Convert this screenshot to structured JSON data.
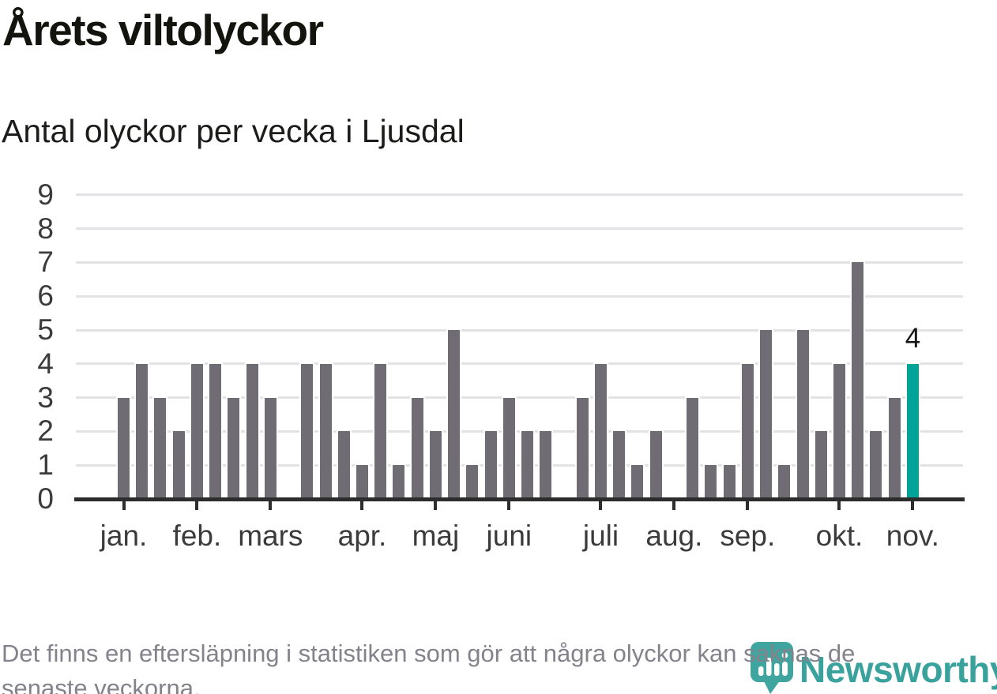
{
  "chart_data": {
    "type": "bar",
    "title": "Årets viltolyckor",
    "subtitle": "Antal olyckor per vecka i Ljusdal",
    "xlabel": "",
    "ylabel": "",
    "x_unit": "vecka",
    "ylim": [
      0,
      9
    ],
    "y_ticks": [
      0,
      1,
      2,
      3,
      4,
      5,
      6,
      7,
      8,
      9
    ],
    "grid": "horizontal",
    "values": [
      3,
      4,
      3,
      2,
      4,
      4,
      3,
      4,
      3,
      0,
      4,
      4,
      2,
      1,
      4,
      1,
      3,
      2,
      5,
      1,
      2,
      3,
      2,
      2,
      0,
      3,
      4,
      2,
      1,
      2,
      0,
      3,
      1,
      1,
      4,
      5,
      1,
      5,
      2,
      4,
      7,
      2,
      3,
      4
    ],
    "highlight_index": 43,
    "annotation": {
      "label": "4"
    },
    "month_ticks": [
      {
        "label": "jan.",
        "week": 1
      },
      {
        "label": "feb.",
        "week": 5
      },
      {
        "label": "mars",
        "week": 9
      },
      {
        "label": "apr.",
        "week": 14
      },
      {
        "label": "maj",
        "week": 18
      },
      {
        "label": "juni",
        "week": 22
      },
      {
        "label": "juli",
        "week": 27
      },
      {
        "label": "aug.",
        "week": 31
      },
      {
        "label": "sep.",
        "week": 35
      },
      {
        "label": "okt.",
        "week": 40
      },
      {
        "label": "nov.",
        "week": 44
      }
    ],
    "colors": {
      "bar": "#6f6c74",
      "highlight": "#00a398",
      "grid": "#e3e3e5",
      "axis": "#2d2d2e",
      "tick_label": "#3b3b3b",
      "annotation": "#161616"
    }
  },
  "footer": {
    "lines": [
      "Det finns en eftersläpning i statistiken som gör att några olyckor kan saknas de",
      "senaste veckorna."
    ]
  },
  "logo": {
    "text": "Newsworthy",
    "text_color": "#3aa29d",
    "mark_color": "#41a59f"
  }
}
